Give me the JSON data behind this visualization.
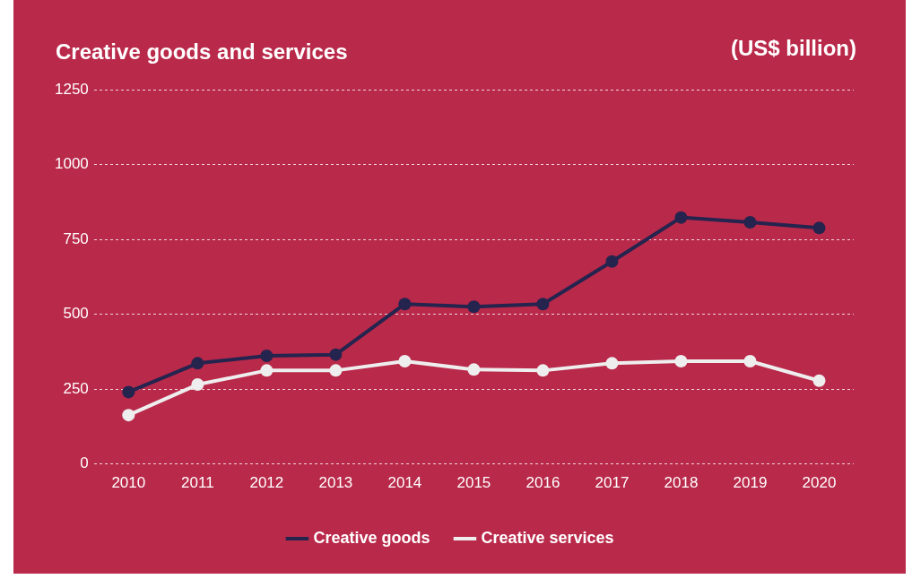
{
  "chart_data": {
    "type": "line",
    "title": "Creative goods and services",
    "ylabel": "(US$ billion)",
    "categories": [
      "2010",
      "2011",
      "2012",
      "2013",
      "2014",
      "2015",
      "2016",
      "2017",
      "2018",
      "2019",
      "2020"
    ],
    "series": [
      {
        "name": "Creative goods",
        "color": "#24244f",
        "values": [
          240,
          336,
          361,
          365,
          534,
          525,
          534,
          676,
          823,
          807,
          788
        ]
      },
      {
        "name": "Creative services",
        "color": "#eeeeee",
        "values": [
          163,
          265,
          312,
          312,
          343,
          315,
          312,
          336,
          343,
          343,
          278
        ]
      }
    ],
    "ylim": [
      0,
      1250
    ],
    "yticks": [
      0,
      250,
      500,
      750,
      1000,
      1250
    ],
    "grid": "y",
    "legend": "bottom",
    "marker": "circle",
    "line_style": "solid"
  }
}
